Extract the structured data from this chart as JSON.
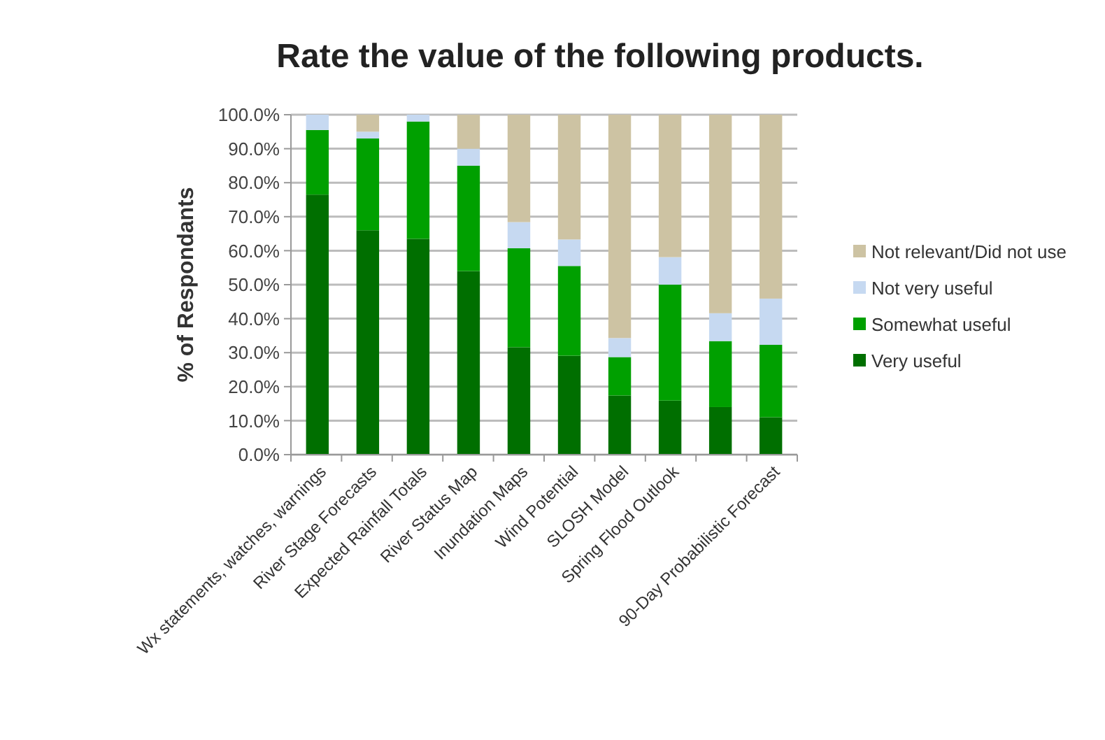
{
  "chart_data": {
    "type": "bar",
    "title": "Rate the value of the following products.",
    "ylabel": "% of Respondants",
    "categories": [
      "Wx statements, watches, warnings",
      "River Stage Forecasts",
      "Expected Rainfall Totals",
      "River Status Map",
      "Inundation Maps",
      "Wind Potential",
      "SLOSH Model",
      "Spring Flood Outlook",
      null,
      "90-Day Probabilistic Forecast"
    ],
    "stacked": true,
    "series": [
      {
        "name": "Very useful",
        "color": "#006f00",
        "values": [
          76.5,
          66,
          63.5,
          54,
          31.6,
          29.1,
          17.4,
          15.9,
          14,
          11
        ]
      },
      {
        "name": "Somewhat useful",
        "color": "#00a000",
        "values": [
          19,
          27,
          34.5,
          31,
          29.1,
          26.4,
          11.3,
          34.1,
          19.4,
          21.3
        ]
      },
      {
        "name": "Not very useful",
        "color": "#c6d9f1",
        "values": [
          4.5,
          2,
          2,
          5,
          7.7,
          7.8,
          5.6,
          8.1,
          8.2,
          13.6
        ]
      },
      {
        "name": "Not relevant/Did not use",
        "color": "#cdc3a3",
        "values": [
          0,
          5,
          0,
          10,
          31.6,
          36.7,
          65.7,
          41.9,
          58.4,
          54.1
        ]
      }
    ],
    "ylim": [
      0,
      100
    ],
    "yticks": [
      {
        "value": 0,
        "label": "0.0%"
      },
      {
        "value": 10,
        "label": "10.0%"
      },
      {
        "value": 20,
        "label": "20.0%"
      },
      {
        "value": 30,
        "label": "30.0%"
      },
      {
        "value": 40,
        "label": "40.0%"
      },
      {
        "value": 50,
        "label": "50.0%"
      },
      {
        "value": 60,
        "label": "60.0%"
      },
      {
        "value": 70,
        "label": "70.0%"
      },
      {
        "value": 80,
        "label": "80.0%"
      },
      {
        "value": 90,
        "label": "90.0%"
      },
      {
        "value": 100,
        "label": "100.0%"
      }
    ],
    "grid": "y",
    "legend": "right"
  }
}
